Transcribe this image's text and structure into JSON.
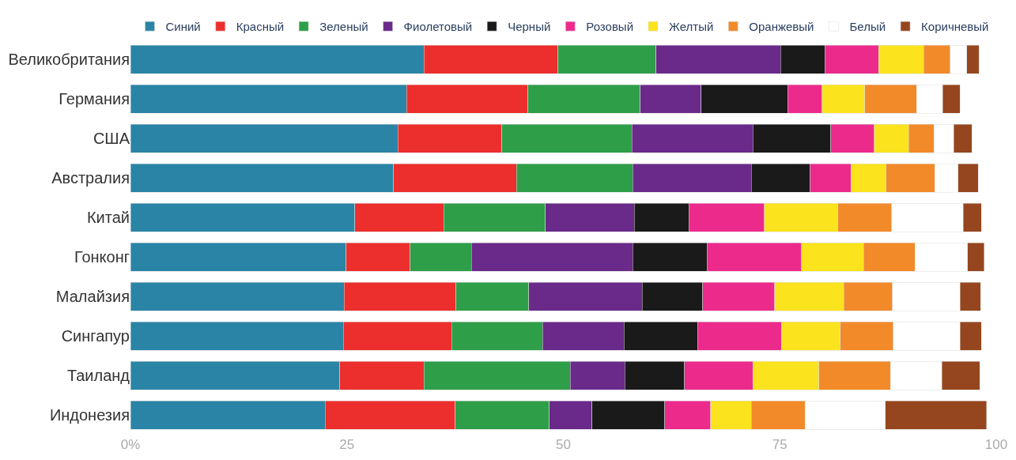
{
  "chart_data": {
    "type": "bar",
    "orientation": "horizontal",
    "stacked": true,
    "legend": "top",
    "categories": [
      "Великобритания",
      "Германия",
      "США",
      "Австралия",
      "Китай",
      "Гонконг",
      "Малайзия",
      "Сингапур",
      "Таиланд",
      "Индонезия"
    ],
    "xlim": [
      0,
      100
    ],
    "xticks": [
      {
        "value": 0,
        "label": "0%"
      },
      25,
      50,
      75,
      100
    ],
    "series": [
      {
        "name": "Синий",
        "color": "#2a84a6",
        "values": [
          33.9,
          31.9,
          30.9,
          30.4,
          25.9,
          24.9,
          24.7,
          24.6,
          24.2,
          22.5
        ]
      },
      {
        "name": "Красный",
        "color": "#ec2e2c",
        "values": [
          15.5,
          14.0,
          12.0,
          14.2,
          10.3,
          7.4,
          12.9,
          12.5,
          9.7,
          15.0
        ]
      },
      {
        "name": "Зеленый",
        "color": "#2f9e48",
        "values": [
          11.3,
          13.0,
          15.0,
          13.4,
          11.7,
          7.1,
          8.4,
          10.5,
          16.9,
          10.9
        ]
      },
      {
        "name": "Фиолетовый",
        "color": "#6a2a8a",
        "values": [
          14.4,
          7.0,
          14.0,
          13.7,
          10.3,
          18.6,
          13.1,
          9.4,
          6.3,
          4.9
        ]
      },
      {
        "name": "Черный",
        "color": "#1a1a1a",
        "values": [
          5.1,
          10.0,
          9.0,
          6.8,
          6.3,
          8.6,
          7.0,
          8.5,
          6.9,
          8.4
        ]
      },
      {
        "name": "Розовый",
        "color": "#ec2a8c",
        "values": [
          6.2,
          4.0,
          5.0,
          4.7,
          8.7,
          10.9,
          8.3,
          9.7,
          7.9,
          5.3
        ]
      },
      {
        "name": "Желтый",
        "color": "#fbe31e",
        "values": [
          5.2,
          4.9,
          4.0,
          4.1,
          8.5,
          7.2,
          8.0,
          6.8,
          7.6,
          4.7
        ]
      },
      {
        "name": "Оранжевый",
        "color": "#f28a2a",
        "values": [
          3.1,
          6.0,
          2.9,
          5.6,
          6.2,
          5.9,
          5.6,
          6.1,
          8.3,
          6.2
        ]
      },
      {
        "name": "Белый",
        "color": "#ffffff",
        "values": [
          1.9,
          3.0,
          2.3,
          2.7,
          8.3,
          6.1,
          7.8,
          7.7,
          5.9,
          9.3
        ]
      },
      {
        "name": "Коричневый",
        "color": "#96461e",
        "values": [
          1.4,
          2.0,
          2.1,
          2.3,
          2.1,
          1.9,
          2.4,
          2.5,
          4.4,
          11.7
        ]
      }
    ]
  }
}
